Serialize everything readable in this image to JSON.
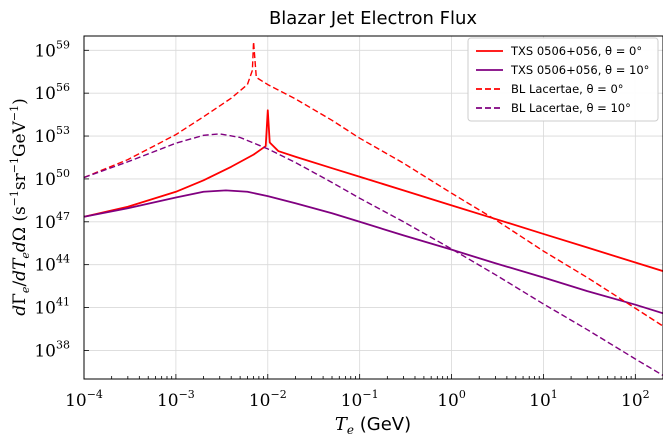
{
  "chart_data": {
    "type": "line",
    "title": "Blazar Jet Electron Flux",
    "xlabel": "T_e (GeV)",
    "ylabel": "dΓ_e/dT_e dΩ (s⁻¹ sr⁻¹ GeV⁻¹)",
    "xscale": "log",
    "yscale": "log",
    "xlim": [
      0.0001,
      200
    ],
    "ylim": [
      1e+36,
      1e+60
    ],
    "grid": true,
    "legend_position": "top-right",
    "x_ticks": [
      {
        "mant": "10",
        "exp": "−4"
      },
      {
        "mant": "10",
        "exp": "−3"
      },
      {
        "mant": "10",
        "exp": "−2"
      },
      {
        "mant": "10",
        "exp": "−1"
      },
      {
        "mant": "10",
        "exp": "0"
      },
      {
        "mant": "10",
        "exp": "1"
      },
      {
        "mant": "10",
        "exp": "2"
      }
    ],
    "y_ticks": [
      {
        "mant": "10",
        "exp": "38"
      },
      {
        "mant": "10",
        "exp": "41"
      },
      {
        "mant": "10",
        "exp": "44"
      },
      {
        "mant": "10",
        "exp": "47"
      },
      {
        "mant": "10",
        "exp": "50"
      },
      {
        "mant": "10",
        "exp": "53"
      },
      {
        "mant": "10",
        "exp": "56"
      },
      {
        "mant": "10",
        "exp": "59"
      }
    ],
    "series": [
      {
        "name": "TXS 0506+056, θ = 0°",
        "color": "#ff0000",
        "dash": "solid",
        "x": [
          0.0001,
          0.0003,
          0.001,
          0.002,
          0.004,
          0.007,
          0.0095,
          0.01,
          0.0105,
          0.013,
          0.02,
          0.05,
          0.1,
          0.3,
          1,
          3,
          10,
          30,
          100,
          200
        ],
        "log10_y": [
          47.35,
          48.05,
          49.1,
          49.9,
          50.85,
          51.7,
          52.3,
          54.8,
          52.55,
          51.95,
          51.55,
          50.75,
          50.15,
          49.2,
          48.15,
          47.2,
          46.15,
          45.2,
          44.15,
          43.55
        ]
      },
      {
        "name": "TXS 0506+056, θ = 10°",
        "color": "#800080",
        "dash": "solid",
        "x": [
          0.0001,
          0.0003,
          0.001,
          0.002,
          0.0035,
          0.006,
          0.01,
          0.02,
          0.05,
          0.1,
          0.3,
          1,
          3,
          10,
          30,
          100,
          200
        ],
        "log10_y": [
          47.35,
          47.95,
          48.7,
          49.1,
          49.2,
          49.1,
          48.8,
          48.3,
          47.6,
          47.0,
          46.05,
          45.05,
          44.1,
          43.1,
          42.15,
          41.2,
          40.6
        ]
      },
      {
        "name": "BL Lacertae, θ = 0°",
        "color": "#ff0000",
        "dash": "dashed",
        "x": [
          0.0001,
          0.0003,
          0.001,
          0.002,
          0.004,
          0.006,
          0.0068,
          0.007,
          0.0075,
          0.01,
          0.02,
          0.05,
          0.1,
          0.3,
          1,
          3,
          10,
          30,
          100,
          200
        ],
        "log10_y": [
          50.1,
          51.35,
          53.1,
          54.35,
          55.65,
          56.6,
          57.6,
          59.6,
          57.1,
          56.6,
          55.6,
          54.1,
          52.85,
          51.1,
          49.0,
          47.15,
          44.95,
          43.1,
          40.95,
          39.7
        ]
      },
      {
        "name": "BL Lacertae, θ = 10°",
        "color": "#800080",
        "dash": "dashed",
        "x": [
          0.0001,
          0.0003,
          0.001,
          0.002,
          0.003,
          0.005,
          0.01,
          0.02,
          0.05,
          0.1,
          0.3,
          1,
          3,
          10,
          30,
          100,
          200
        ],
        "log10_y": [
          50.1,
          51.2,
          52.5,
          53.05,
          53.15,
          52.9,
          52.1,
          51.15,
          49.75,
          48.65,
          47.0,
          45.1,
          43.3,
          41.25,
          39.45,
          37.4,
          36.25
        ]
      }
    ]
  }
}
